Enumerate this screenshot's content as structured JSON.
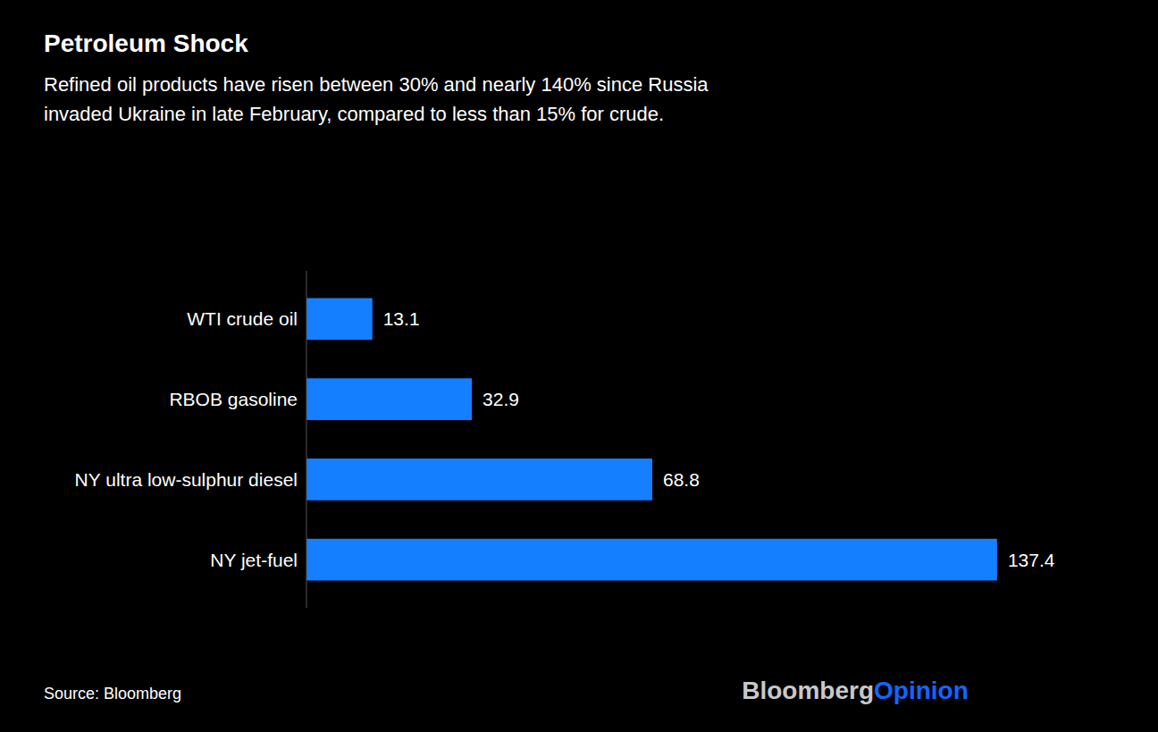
{
  "chart_data": {
    "type": "bar",
    "orientation": "horizontal",
    "title": "Petroleum Shock",
    "subtitle": "Refined oil products have risen between 30% and nearly 140% since Russia\ninvaded Ukraine in late February, compared to less than 15% for crude.",
    "categories": [
      "WTI crude oil",
      "RBOB gasoline",
      "NY ultra low-sulphur diesel",
      "NY jet-fuel"
    ],
    "values": [
      13.1,
      32.9,
      68.8,
      137.4
    ],
    "color": "#1480FF",
    "xlim": [
      0,
      152
    ],
    "data_labels": true,
    "tick_labels": "y",
    "grid": false,
    "annotations": [
      {
        "text": "Source: Bloomberg"
      },
      {
        "text": "Bloomberg",
        "color": "#c8c8c8"
      },
      {
        "text": "Opinion",
        "color": "#1565FF"
      }
    ]
  }
}
